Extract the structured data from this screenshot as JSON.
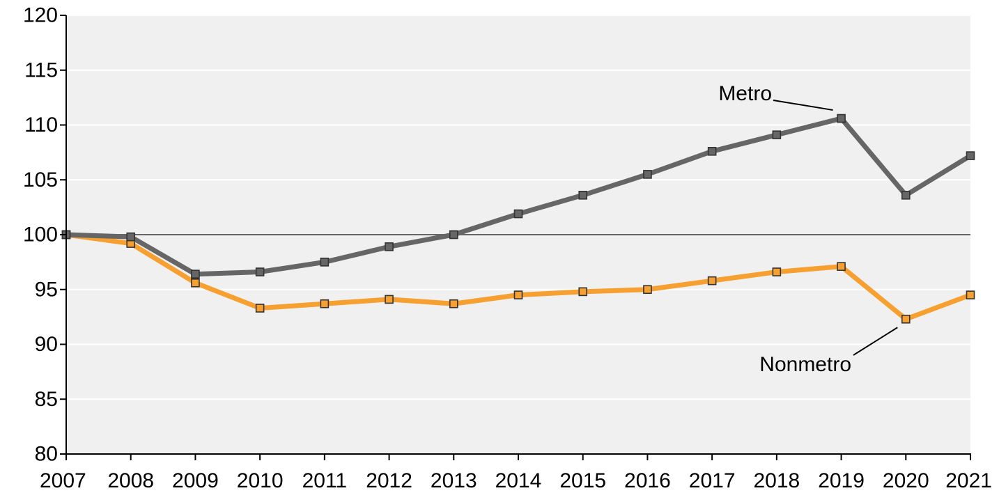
{
  "chart_data": {
    "type": "line",
    "title": "",
    "xlabel": "",
    "ylabel": "",
    "x": [
      "2007",
      "2008",
      "2009",
      "2010",
      "2011",
      "2012",
      "2013",
      "2014",
      "2015",
      "2016",
      "2017",
      "2018",
      "2019",
      "2020",
      "2021"
    ],
    "ylim": [
      80,
      120
    ],
    "yticks": [
      "80",
      "85",
      "90",
      "95",
      "100",
      "105",
      "110",
      "115",
      "120"
    ],
    "reference_line": 100,
    "grid": true,
    "legend": "none",
    "series": [
      {
        "name": "Metro",
        "color": "#666666",
        "values": [
          100.0,
          99.8,
          96.4,
          96.6,
          97.5,
          98.9,
          100.0,
          101.9,
          103.6,
          105.5,
          107.6,
          109.1,
          110.6,
          103.6,
          107.2
        ]
      },
      {
        "name": "Nonmetro",
        "color": "#f7a032",
        "values": [
          100.0,
          99.2,
          95.6,
          93.3,
          93.7,
          94.1,
          93.7,
          94.5,
          94.8,
          95.0,
          95.8,
          96.6,
          97.1,
          92.3,
          94.5
        ]
      }
    ],
    "annotations": [
      {
        "label": "Metro",
        "series": "Metro",
        "point": "2019"
      },
      {
        "label": "Nonmetro",
        "series": "Nonmetro",
        "point": "2020"
      }
    ]
  },
  "colors": {
    "plot_background": "#f0f0f0",
    "gridline": "#ffffff",
    "reference_line": "#666666",
    "axis": "#000000"
  }
}
